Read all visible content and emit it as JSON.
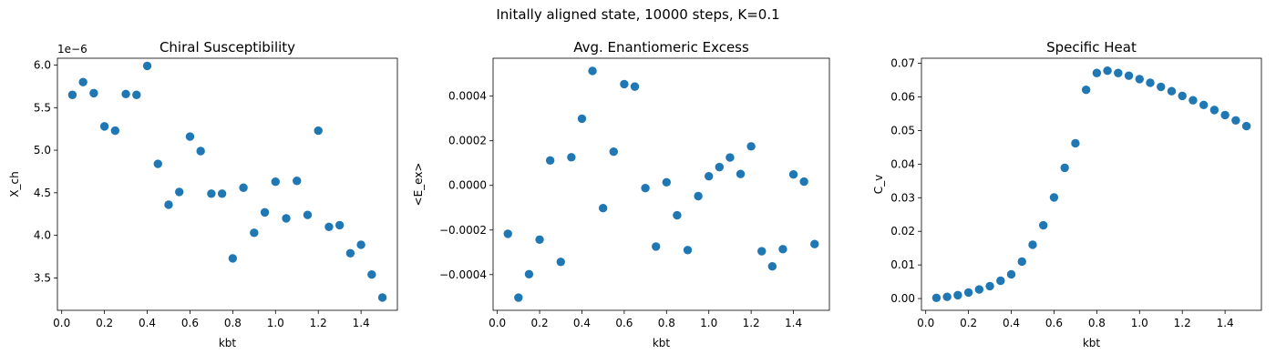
{
  "figure": {
    "suptitle": "Initally aligned state, 10000 steps, K=0.1"
  },
  "chart_data": [
    {
      "type": "scatter",
      "title": "Chiral Susceptibility",
      "xlabel": "kbt",
      "ylabel": "X_ch",
      "offset_label": "1e−6",
      "xlim": [
        -0.02,
        1.57
      ],
      "ylim": [
        3.12,
        6.08
      ],
      "xticks": [
        0.0,
        0.2,
        0.4,
        0.6,
        0.8,
        1.0,
        1.2,
        1.4
      ],
      "xtick_labels": [
        "0.0",
        "0.2",
        "0.4",
        "0.6",
        "0.8",
        "1.0",
        "1.2",
        "1.4"
      ],
      "yticks": [
        3.5,
        4.0,
        4.5,
        5.0,
        5.5,
        6.0
      ],
      "ytick_labels": [
        "3.5",
        "4.0",
        "4.5",
        "5.0",
        "5.5",
        "6.0"
      ],
      "marker_color": "#1f77b4",
      "x": [
        0.05,
        0.1,
        0.15,
        0.2,
        0.25,
        0.3,
        0.35,
        0.4,
        0.45,
        0.5,
        0.55,
        0.6,
        0.65,
        0.7,
        0.75,
        0.8,
        0.85,
        0.9,
        0.95,
        1.0,
        1.05,
        1.1,
        1.15,
        1.2,
        1.25,
        1.3,
        1.35,
        1.4,
        1.45,
        1.5
      ],
      "y": [
        5.65,
        5.8,
        5.67,
        5.28,
        5.23,
        5.66,
        5.65,
        5.99,
        4.84,
        4.36,
        4.51,
        5.16,
        4.99,
        4.49,
        4.49,
        3.73,
        4.56,
        4.03,
        4.27,
        4.63,
        4.2,
        4.64,
        4.24,
        5.23,
        4.1,
        4.12,
        3.79,
        3.89,
        3.54,
        3.27
      ]
    },
    {
      "type": "scatter",
      "title": "Avg. Enantiomeric Excess",
      "xlabel": "kbt",
      "ylabel": "<E_ex>",
      "xlim": [
        -0.02,
        1.57
      ],
      "ylim": [
        -0.00056,
        0.00057
      ],
      "xticks": [
        0.0,
        0.2,
        0.4,
        0.6,
        0.8,
        1.0,
        1.2,
        1.4
      ],
      "xtick_labels": [
        "0.0",
        "0.2",
        "0.4",
        "0.6",
        "0.8",
        "1.0",
        "1.2",
        "1.4"
      ],
      "yticks": [
        -0.0004,
        -0.0002,
        0.0,
        0.0002,
        0.0004
      ],
      "ytick_labels": [
        "−0.0004",
        "−0.0002",
        "0.0000",
        "0.0002",
        "0.0004"
      ],
      "marker_color": "#1f77b4",
      "x": [
        0.05,
        0.1,
        0.15,
        0.2,
        0.25,
        0.3,
        0.35,
        0.4,
        0.45,
        0.5,
        0.55,
        0.6,
        0.65,
        0.7,
        0.75,
        0.8,
        0.85,
        0.9,
        0.95,
        1.0,
        1.05,
        1.1,
        1.15,
        1.2,
        1.25,
        1.3,
        1.35,
        1.4,
        1.45,
        1.5
      ],
      "y": [
        -0.000217,
        -0.000503,
        -0.000398,
        -0.000243,
        0.000112,
        -0.000343,
        0.000126,
        0.000299,
        0.000513,
        -0.000102,
        0.000151,
        0.000454,
        0.000443,
        -1.2e-05,
        -0.000274,
        1.4e-05,
        -0.000134,
        -0.00029,
        -4.8e-05,
        4.1e-05,
        8.2e-05,
        0.000125,
        5.1e-05,
        0.000175,
        -0.000295,
        -0.000363,
        -0.000286,
        4.9e-05,
        1.7e-05,
        -0.000263
      ]
    },
    {
      "type": "scatter",
      "title": "Specific Heat",
      "xlabel": "kbt",
      "ylabel": "C_v",
      "xlim": [
        -0.02,
        1.57
      ],
      "ylim": [
        -0.0035,
        0.0715
      ],
      "xticks": [
        0.0,
        0.2,
        0.4,
        0.6,
        0.8,
        1.0,
        1.2,
        1.4
      ],
      "xtick_labels": [
        "0.0",
        "0.2",
        "0.4",
        "0.6",
        "0.8",
        "1.0",
        "1.2",
        "1.4"
      ],
      "yticks": [
        0.0,
        0.01,
        0.02,
        0.03,
        0.04,
        0.05,
        0.06,
        0.07
      ],
      "ytick_labels": [
        "0.00",
        "0.01",
        "0.02",
        "0.03",
        "0.04",
        "0.05",
        "0.06",
        "0.07"
      ],
      "marker_color": "#1f77b4",
      "x": [
        0.05,
        0.1,
        0.15,
        0.2,
        0.25,
        0.3,
        0.35,
        0.4,
        0.45,
        0.5,
        0.55,
        0.6,
        0.65,
        0.7,
        0.75,
        0.8,
        0.85,
        0.9,
        0.95,
        1.0,
        1.05,
        1.1,
        1.15,
        1.2,
        1.25,
        1.3,
        1.35,
        1.4,
        1.45,
        1.5
      ],
      "y": [
        0.0002,
        0.0005,
        0.001,
        0.0018,
        0.0027,
        0.0037,
        0.0053,
        0.0072,
        0.011,
        0.016,
        0.0218,
        0.0301,
        0.0389,
        0.0462,
        0.0621,
        0.0671,
        0.0678,
        0.0671,
        0.0663,
        0.0653,
        0.0642,
        0.063,
        0.0617,
        0.0603,
        0.059,
        0.0576,
        0.0561,
        0.0546,
        0.053,
        0.0513
      ]
    }
  ]
}
